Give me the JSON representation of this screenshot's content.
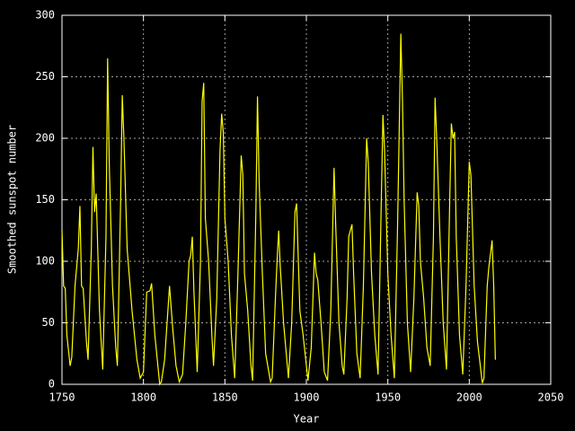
{
  "chart_data": {
    "type": "line",
    "x_label": "Year",
    "y_label": "Smoothed sunspot number",
    "xlim": [
      1750,
      2050
    ],
    "xticks": [
      1750,
      1800,
      1850,
      1900,
      1950,
      2000,
      2050
    ],
    "ylim": [
      0,
      300
    ],
    "yticks": [
      0,
      50,
      100,
      150,
      200,
      250,
      300
    ],
    "grid": true,
    "x": [
      1750,
      1751,
      1752,
      1753,
      1755,
      1756,
      1758,
      1760,
      1761,
      1762,
      1763,
      1765,
      1766,
      1768,
      1769,
      1770,
      1771,
      1773,
      1775,
      1777,
      1778,
      1779,
      1781,
      1783,
      1784,
      1786,
      1787,
      1788,
      1790,
      1793,
      1796,
      1798,
      1800,
      1802,
      1804,
      1805,
      1807,
      1810,
      1811,
      1813,
      1815,
      1816,
      1818,
      1820,
      1822,
      1824,
      1826,
      1828,
      1829,
      1830,
      1831,
      1833,
      1835,
      1836,
      1837,
      1838,
      1840,
      1842,
      1843,
      1845,
      1847,
      1848,
      1849,
      1850,
      1852,
      1854,
      1856,
      1858,
      1860,
      1861,
      1862,
      1864,
      1866,
      1867,
      1869,
      1870,
      1871,
      1873,
      1875,
      1878,
      1879,
      1881,
      1882,
      1883,
      1884,
      1886,
      1889,
      1891,
      1893,
      1894,
      1896,
      1898,
      1901,
      1903,
      1905,
      1906,
      1907,
      1909,
      1911,
      1913,
      1915,
      1917,
      1918,
      1920,
      1922,
      1923,
      1925,
      1926,
      1928,
      1929,
      1931,
      1933,
      1935,
      1937,
      1938,
      1940,
      1942,
      1944,
      1946,
      1947,
      1948,
      1950,
      1952,
      1954,
      1956,
      1958,
      1959,
      1960,
      1962,
      1964,
      1966,
      1968,
      1969,
      1970,
      1972,
      1974,
      1976,
      1978,
      1979,
      1980,
      1982,
      1984,
      1986,
      1988,
      1989,
      1990,
      1991,
      1992,
      1994,
      1996,
      1998,
      2000,
      2001,
      2003,
      2005,
      2008,
      2009,
      2011,
      2012,
      2014,
      2015,
      2016
    ],
    "series": [
      {
        "name": "Smoothed sunspot number",
        "color": "#ffff00",
        "values": [
          125,
          80,
          78,
          40,
          15,
          22,
          80,
          110,
          145,
          80,
          78,
          35,
          20,
          110,
          193,
          140,
          155,
          60,
          12,
          120,
          265,
          180,
          80,
          30,
          15,
          150,
          235,
          200,
          110,
          60,
          20,
          5,
          10,
          75,
          76,
          82,
          40,
          0,
          2,
          20,
          60,
          80,
          45,
          15,
          2,
          8,
          50,
          100,
          105,
          120,
          75,
          10,
          100,
          230,
          245,
          135,
          100,
          40,
          15,
          70,
          190,
          220,
          205,
          135,
          100,
          40,
          5,
          90,
          186,
          170,
          90,
          60,
          15,
          3,
          140,
          234,
          165,
          90,
          25,
          2,
          5,
          70,
          100,
          125,
          95,
          50,
          5,
          50,
          140,
          147,
          60,
          40,
          3,
          30,
          107,
          90,
          85,
          50,
          10,
          3,
          60,
          176,
          130,
          50,
          15,
          8,
          70,
          120,
          130,
          90,
          25,
          5,
          80,
          200,
          180,
          90,
          40,
          8,
          150,
          219,
          190,
          90,
          40,
          5,
          130,
          285,
          230,
          150,
          50,
          10,
          70,
          156,
          145,
          100,
          70,
          30,
          15,
          120,
          233,
          200,
          120,
          50,
          12,
          150,
          212,
          200,
          205,
          120,
          40,
          8,
          80,
          181,
          170,
          80,
          35,
          1,
          5,
          80,
          95,
          117,
          80,
          20
        ]
      }
    ]
  }
}
